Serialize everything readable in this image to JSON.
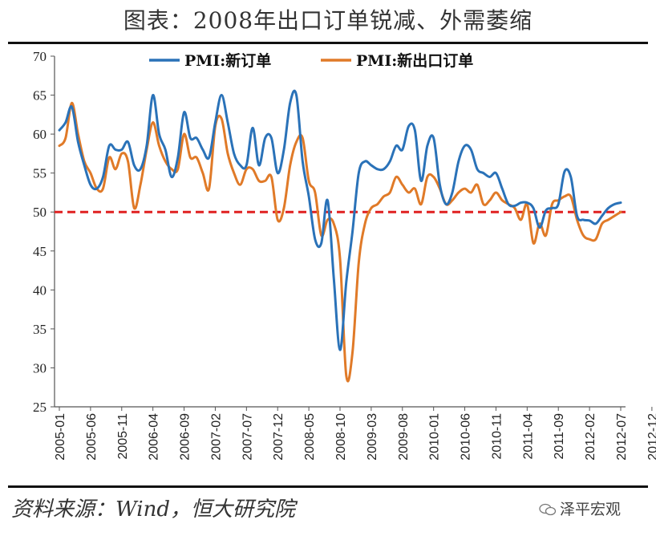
{
  "title": "图表：2008年出口订单锐减、外需萎缩",
  "source": "资料来源：Wind，恒大研究院",
  "watermark": "泽平宏观",
  "chart_data": {
    "type": "line",
    "ylim": [
      25,
      70
    ],
    "y_ticks": [
      25,
      30,
      35,
      40,
      45,
      50,
      55,
      60,
      65,
      70
    ],
    "x_tick_labels": [
      "2005-01",
      "2005-06",
      "2005-11",
      "2006-04",
      "2006-09",
      "2007-02",
      "2007-07",
      "2007-12",
      "2008-05",
      "2008-10",
      "2009-03",
      "2009-08",
      "2010-01",
      "2010-06",
      "2010-11",
      "2011-04",
      "2011-09",
      "2012-02",
      "2012-07",
      "2012-12"
    ],
    "x_start": "2005-01",
    "x_end": "2012-12",
    "reference_line": {
      "value": 50,
      "color": "#e02020",
      "style": "dashed"
    },
    "legend_position": "top",
    "series": [
      {
        "name": "PMI:新订单",
        "color": "#2a72b8",
        "values": [
          60.5,
          61.5,
          63.5,
          59.0,
          56.0,
          53.5,
          53.0,
          54.5,
          58.5,
          58.0,
          58.0,
          59.0,
          56.0,
          55.5,
          58.5,
          65.0,
          60.0,
          58.0,
          54.5,
          57.0,
          62.8,
          59.5,
          59.5,
          58.0,
          57.0,
          61.5,
          65.0,
          61.5,
          57.5,
          56.0,
          56.0,
          60.8,
          56.0,
          59.5,
          59.5,
          55.0,
          58.0,
          64.0,
          65.0,
          56.5,
          52.0,
          46.5,
          46.0,
          51.5,
          41.5,
          32.3,
          41.0,
          47.5,
          55.0,
          56.5,
          56.0,
          55.5,
          55.5,
          56.5,
          58.5,
          58.0,
          61.0,
          60.5,
          54.0,
          58.5,
          59.5,
          53.5,
          51.0,
          52.5,
          56.5,
          58.5,
          58.0,
          55.5,
          55.0,
          54.5,
          55.0,
          53.0,
          51.0,
          50.8,
          51.2,
          51.2,
          50.5,
          48.0,
          50.2,
          50.5,
          51.0,
          55.2,
          54.5,
          49.5,
          49.0,
          48.9,
          48.5,
          49.5,
          50.5,
          51.0,
          51.2
        ]
      },
      {
        "name": "PMI:新出口订单",
        "color": "#e07a28",
        "values": [
          58.5,
          59.5,
          64.0,
          60.0,
          56.5,
          55.0,
          53.0,
          53.0,
          57.0,
          55.5,
          57.5,
          56.5,
          50.5,
          53.5,
          58.0,
          61.5,
          58.5,
          56.5,
          55.5,
          55.5,
          60.0,
          57.0,
          57.0,
          55.0,
          53.0,
          61.0,
          62.0,
          57.5,
          55.0,
          53.5,
          55.5,
          55.5,
          54.0,
          54.0,
          54.5,
          49.0,
          50.5,
          56.0,
          59.0,
          59.5,
          54.0,
          52.5,
          47.0,
          49.0,
          48.5,
          44.0,
          29.0,
          32.0,
          43.5,
          48.5,
          50.5,
          51.0,
          52.0,
          52.5,
          54.5,
          53.5,
          52.5,
          53.0,
          51.0,
          54.5,
          54.5,
          53.0,
          51.0,
          51.5,
          52.5,
          53.0,
          52.5,
          53.5,
          51.0,
          51.5,
          52.5,
          51.5,
          51.0,
          50.5,
          49.0,
          51.0,
          46.0,
          48.5,
          47.0,
          51.0,
          51.5,
          52.0,
          52.0,
          49.0,
          47.0,
          46.5,
          46.5,
          48.5,
          49.0,
          49.5,
          50.0
        ]
      }
    ]
  }
}
